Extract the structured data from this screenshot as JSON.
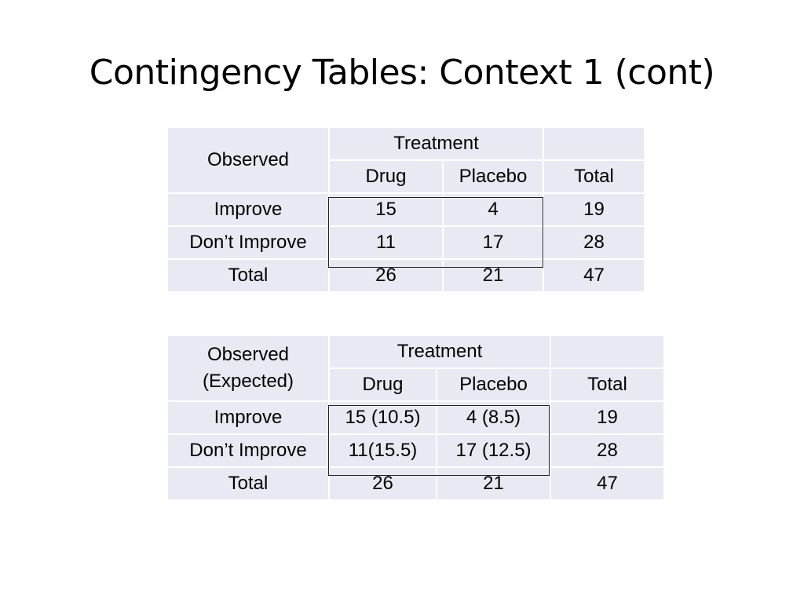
{
  "slide": {
    "title": "Contingency Tables: Context 1 (cont)"
  },
  "table1": {
    "corner_label": "Observed",
    "group_header": "Treatment",
    "col_headers": [
      "Drug",
      "Placebo",
      "Total"
    ],
    "rows": [
      {
        "label": "Improve",
        "cells": [
          "15",
          "4",
          "19"
        ]
      },
      {
        "label": "Don’t Improve",
        "cells": [
          "11",
          "17",
          "28"
        ]
      },
      {
        "label": "Total",
        "cells": [
          "26",
          "21",
          "47"
        ]
      }
    ]
  },
  "table2": {
    "corner_label_line1": "Observed",
    "corner_label_line2": "(Expected)",
    "group_header": "Treatment",
    "col_headers": [
      "Drug",
      "Placebo",
      "Total"
    ],
    "rows": [
      {
        "label": "Improve",
        "cells": [
          "15 (10.5)",
          "4 (8.5)",
          "19"
        ]
      },
      {
        "label": "Don’t Improve",
        "cells": [
          "11(15.5)",
          "17 (12.5)",
          "28"
        ]
      },
      {
        "label": "Total",
        "cells": [
          "26",
          "21",
          "47"
        ]
      }
    ]
  },
  "colors": {
    "cell_fill": "#e8e9f2",
    "grid_line": "#ffffff",
    "frame": "#222222"
  }
}
